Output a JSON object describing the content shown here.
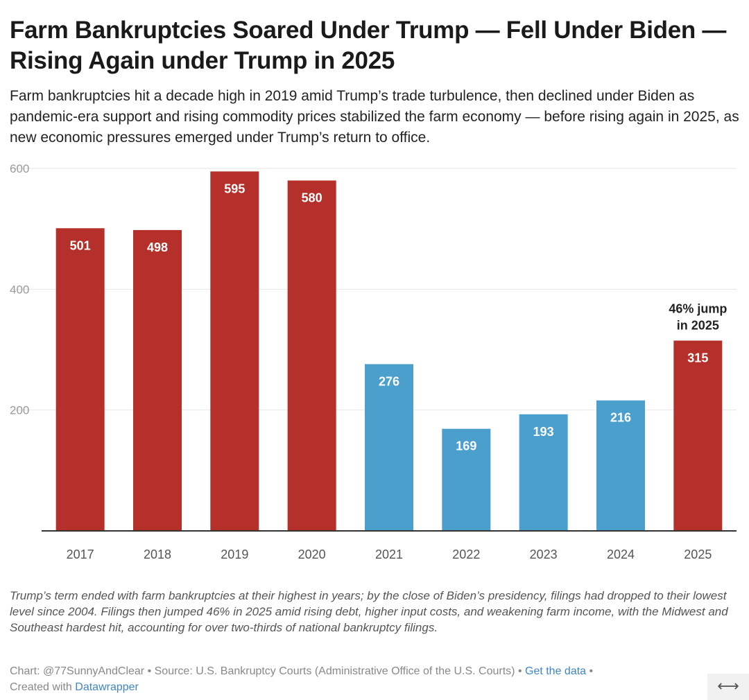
{
  "chart_data": {
    "type": "bar",
    "title": "Farm Bankruptcies Soared Under Trump — Fell Under Biden — Rising Again under Trump in 2025",
    "subtitle": "Farm bankruptcies hit a decade high in 2019 amid Trump’s trade turbulence, then declined under Biden as pandemic-era support and rising commodity prices stabilized the farm economy — before rising again in 2025, as new economic pressures emerged under Trump’s return to office.",
    "xlabel": "",
    "ylabel": "",
    "categories": [
      "2017",
      "2018",
      "2019",
      "2020",
      "2021",
      "2022",
      "2023",
      "2024",
      "2025"
    ],
    "values": [
      501,
      498,
      595,
      580,
      276,
      169,
      193,
      216,
      315
    ],
    "data_labels": [
      "501",
      "498",
      "595",
      "580",
      "276",
      "169",
      "193",
      "216",
      "315"
    ],
    "bar_colors": [
      "#b5302a",
      "#b5302a",
      "#b5302a",
      "#b5302a",
      "#4a9fcd",
      "#4a9fcd",
      "#4a9fcd",
      "#4a9fcd",
      "#b5302a"
    ],
    "ylim": [
      0,
      600
    ],
    "yticks": [
      0,
      200,
      400,
      600
    ],
    "ytick_labels": [
      "",
      "200",
      "400",
      "600"
    ],
    "grid": true,
    "annotation": {
      "category": "2025",
      "lines": [
        "46% jump",
        "in 2025"
      ]
    }
  },
  "footer": {
    "note": "Trump’s term ended with farm bankruptcies at their highest in years; by the close of Biden’s presidency, filings had dropped to their lowest level since 2004. Filings then jumped 46% in 2025 amid rising debt, higher input costs, and weakening farm income, with the Midwest and Southeast hardest hit, accounting for over two-thirds of national bankruptcy filings.",
    "credit_prefix": "Chart: @77SunnyAndClear • Source: U.S. Bankruptcy Courts (Administrative Office of the U.S. Courts) • ",
    "get_data_link": "Get the data",
    "credit_sep": " •",
    "created_with": "Created with ",
    "datawrapper_link": "Datawrapper"
  },
  "expand_icon": {
    "name": "expand-arrows-icon",
    "glyph": "⟷"
  }
}
